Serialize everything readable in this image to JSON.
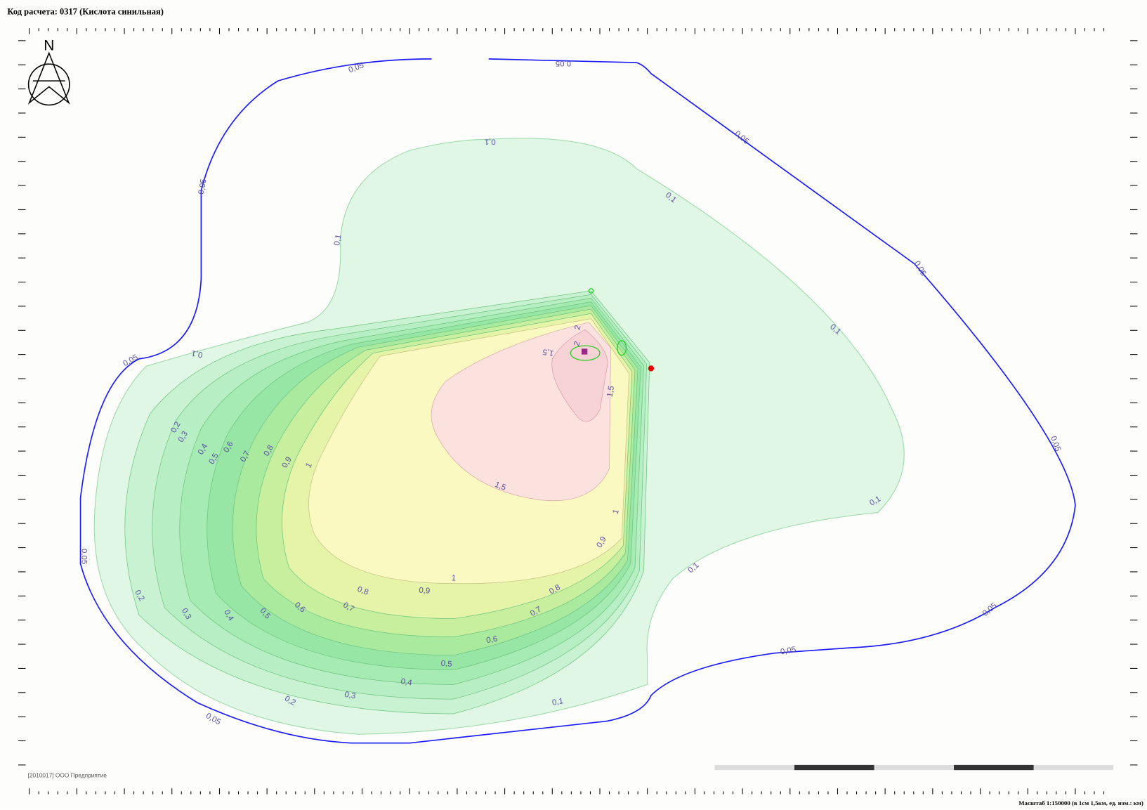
{
  "header": {
    "title": "Код расчета: 0317 (Кислота синильная)"
  },
  "map": {
    "north": "N",
    "contour_labels": [
      "0,05",
      "0,05",
      "0,05",
      "0,05",
      "0,05",
      "0,05",
      "0,05",
      "0,05",
      "0,05",
      "0,05",
      "0,05",
      "0,1",
      "0,1",
      "0,1",
      "0,1",
      "0,1",
      "0,1",
      "0,1",
      "0,1",
      "0,2",
      "0,2",
      "0,2",
      "0,3",
      "0,3",
      "0,3",
      "0,4",
      "0,4",
      "0,4",
      "0,5",
      "0,5",
      "0,5",
      "0,6",
      "0,6",
      "0,6",
      "0,7",
      "0,7",
      "0,7",
      "0,8",
      "0,8",
      "0,8",
      "0,9",
      "0,9",
      "0,9",
      "1",
      "1",
      "1",
      "1,5",
      "1,5",
      "1,5",
      "2",
      "2"
    ]
  },
  "footer": {
    "scale": "Масштаб 1:150000 (в 1см 1,5км, ед. изм.: км)",
    "note": "[2010017] ООО Предприятие"
  }
}
